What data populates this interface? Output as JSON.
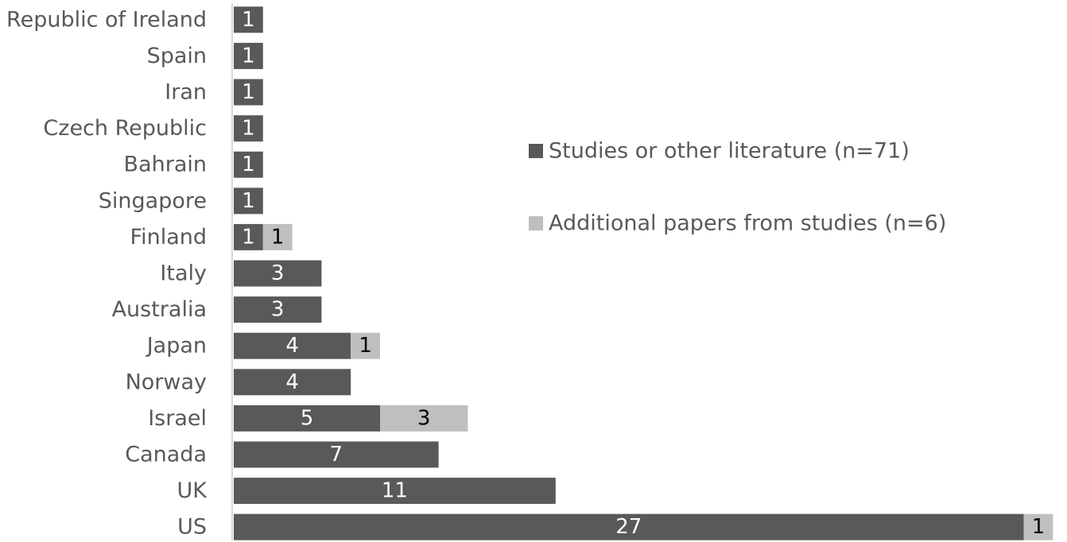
{
  "chart_data": {
    "type": "bar",
    "orientation": "horizontal",
    "stacked": true,
    "categories": [
      "Republic of Ireland",
      "Spain",
      "Iran",
      "Czech Republic",
      "Bahrain",
      "Singapore",
      "Finland",
      "Italy",
      "Australia",
      "Japan",
      "Norway",
      "Israel",
      "Canada",
      "UK",
      "US"
    ],
    "series": [
      {
        "name": "Studies or other literature (n=71)",
        "color": "#595959",
        "values": [
          1,
          1,
          1,
          1,
          1,
          1,
          1,
          3,
          3,
          4,
          4,
          5,
          7,
          11,
          27
        ]
      },
      {
        "name": "Additional papers from studies (n=6)",
        "color": "#bfbfbf",
        "values": [
          0,
          0,
          0,
          0,
          0,
          0,
          1,
          0,
          0,
          1,
          0,
          3,
          0,
          0,
          1
        ]
      }
    ],
    "xlim": [
      0,
      28
    ],
    "grid": false,
    "legend_position": "right",
    "data_labels": true
  }
}
